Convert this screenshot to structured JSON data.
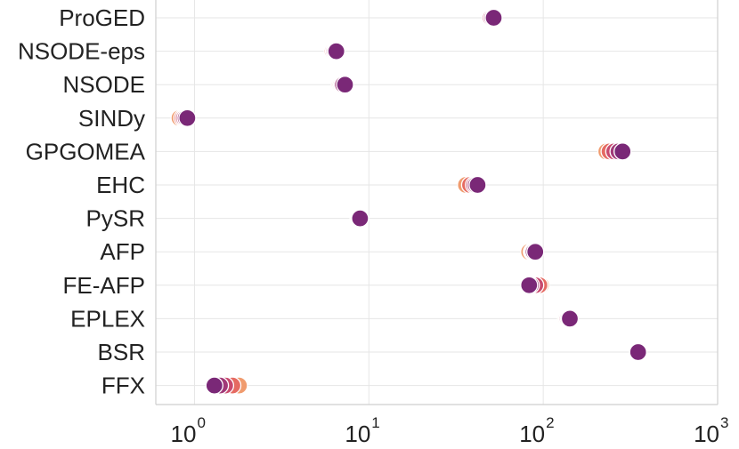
{
  "chart_data": {
    "type": "scatter",
    "x_scale": "log",
    "xlim": [
      0.6,
      1000
    ],
    "x_ticks": [
      {
        "base": "10",
        "exp": "0",
        "value": 1
      },
      {
        "base": "10",
        "exp": "1",
        "value": 10
      },
      {
        "base": "10",
        "exp": "2",
        "value": 100
      },
      {
        "base": "10",
        "exp": "3",
        "value": 1000
      }
    ],
    "grid": true,
    "colors": [
      "#f09b6e",
      "#e56a62",
      "#c84a6e",
      "#a13978",
      "#7a2877"
    ],
    "categories": [
      "ProGED",
      "NSODE-eps",
      "NSODE",
      "SINDy",
      "GPGOMEA",
      "EHC",
      "PySR",
      "AFP",
      "FE-AFP",
      "EPLEX",
      "BSR",
      "FFX"
    ],
    "series": [
      {
        "values": [
          50,
          6.2,
          6.8,
          0.82,
          230,
          36,
          8.7,
          83,
          97,
          135,
          350,
          1.8
        ]
      },
      {
        "values": [
          50,
          6.2,
          6.9,
          0.85,
          240,
          38,
          8.8,
          86,
          95,
          137,
          350,
          1.65
        ]
      },
      {
        "values": [
          50,
          6.3,
          7.0,
          0.87,
          255,
          40,
          8.8,
          87,
          90,
          138,
          350,
          1.5
        ]
      },
      {
        "values": [
          51,
          6.4,
          7.1,
          0.89,
          270,
          41,
          8.9,
          88,
          85,
          140,
          350,
          1.4
        ]
      },
      {
        "values": [
          52,
          6.5,
          7.3,
          0.91,
          285,
          42,
          8.9,
          90,
          83,
          142,
          350,
          1.3
        ]
      }
    ]
  }
}
